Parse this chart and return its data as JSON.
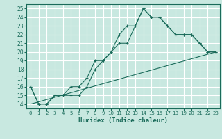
{
  "xlabel": "Humidex (Indice chaleur)",
  "bg_color": "#c8e8e0",
  "grid_color": "#ffffff",
  "line_color": "#1a6b5a",
  "xlim": [
    -0.5,
    23.5
  ],
  "ylim": [
    13.5,
    25.5
  ],
  "xticks": [
    0,
    1,
    2,
    3,
    4,
    5,
    6,
    7,
    8,
    9,
    10,
    11,
    12,
    13,
    14,
    15,
    16,
    17,
    18,
    19,
    20,
    21,
    22,
    23
  ],
  "yticks": [
    14,
    15,
    16,
    17,
    18,
    19,
    20,
    21,
    22,
    23,
    24,
    25
  ],
  "line1_x": [
    0,
    1,
    2,
    3,
    4,
    5,
    6,
    7,
    8,
    9,
    10,
    11,
    12,
    13,
    14,
    15,
    16,
    17,
    18,
    19,
    20,
    21,
    22,
    23
  ],
  "line1_y": [
    16,
    14,
    14,
    15,
    15,
    16,
    16,
    17,
    19,
    19,
    20,
    21,
    21,
    23,
    25,
    24,
    24,
    23,
    22,
    22,
    22,
    21,
    20,
    20
  ],
  "line2_x": [
    0,
    1,
    2,
    3,
    4,
    5,
    6,
    7,
    8,
    9,
    10,
    11,
    12,
    13,
    14,
    15,
    16,
    17,
    18,
    19,
    20,
    21,
    22,
    23
  ],
  "line2_y": [
    16,
    14,
    14,
    15,
    15,
    15,
    15,
    16,
    18,
    19,
    20,
    22,
    23,
    23,
    25,
    24,
    24,
    23,
    22,
    22,
    22,
    21,
    20,
    20
  ],
  "line3_x": [
    0,
    23
  ],
  "line3_y": [
    14,
    20
  ]
}
